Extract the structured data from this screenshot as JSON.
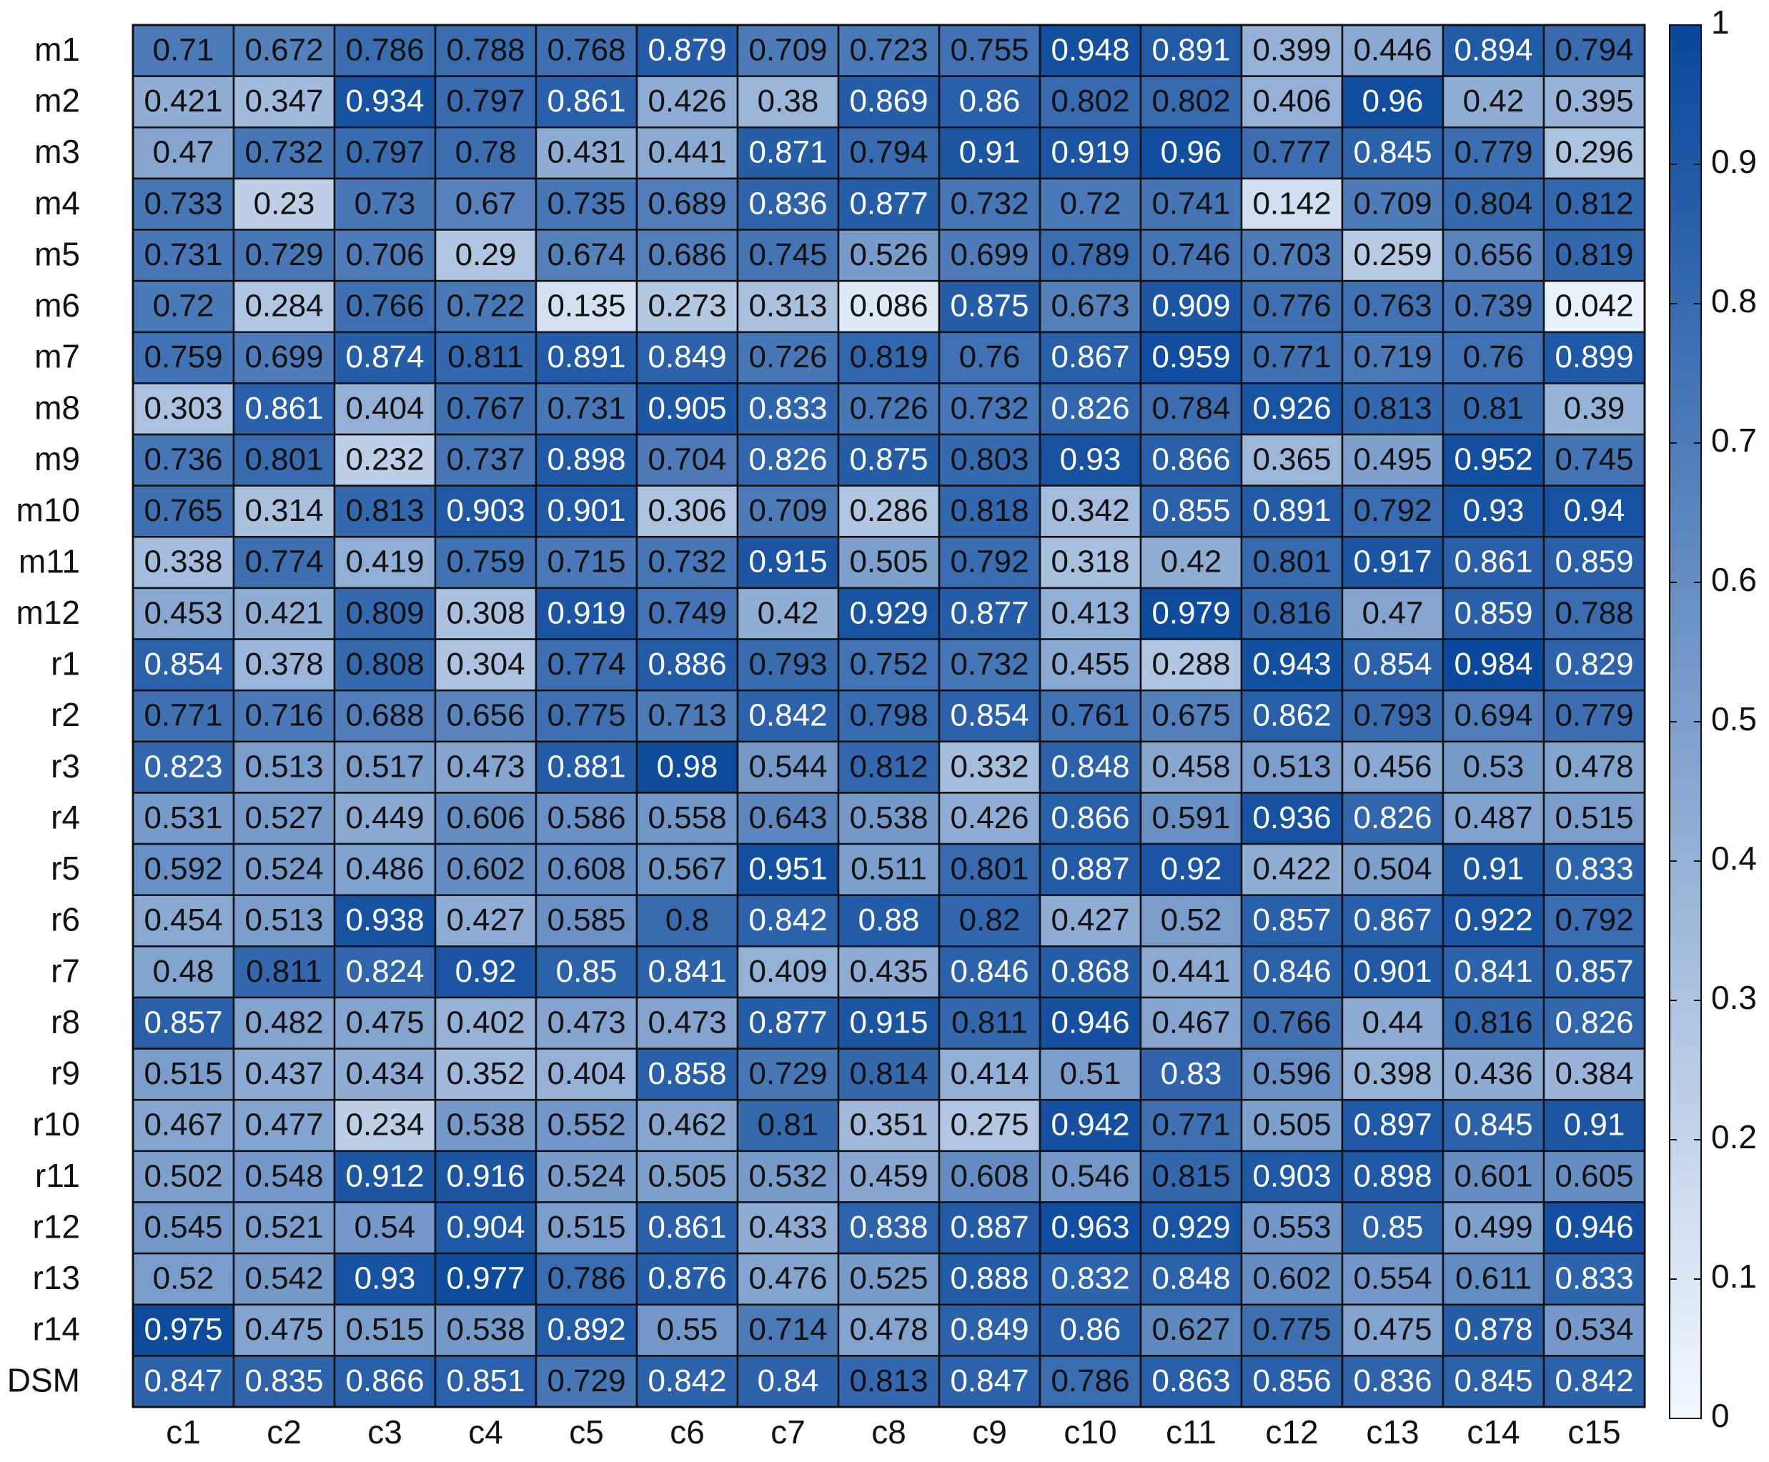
{
  "chart_data": {
    "type": "heatmap",
    "x_categories": [
      "c1",
      "c2",
      "c3",
      "c4",
      "c5",
      "c6",
      "c7",
      "c8",
      "c9",
      "c10",
      "c11",
      "c12",
      "c13",
      "c14",
      "c15"
    ],
    "y_categories": [
      "m1",
      "m2",
      "m3",
      "m4",
      "m5",
      "m6",
      "m7",
      "m8",
      "m9",
      "m10",
      "m11",
      "m12",
      "r1",
      "r2",
      "r3",
      "r4",
      "r5",
      "r6",
      "r7",
      "r8",
      "r9",
      "r10",
      "r11",
      "r12",
      "r13",
      "r14",
      "DSM"
    ],
    "values": [
      [
        0.71,
        0.672,
        0.786,
        0.788,
        0.768,
        0.879,
        0.709,
        0.723,
        0.755,
        0.948,
        0.891,
        0.399,
        0.446,
        0.894,
        0.794
      ],
      [
        0.421,
        0.347,
        0.934,
        0.797,
        0.861,
        0.426,
        0.38,
        0.869,
        0.86,
        0.802,
        0.802,
        0.406,
        0.96,
        0.42,
        0.395
      ],
      [
        0.47,
        0.732,
        0.797,
        0.78,
        0.431,
        0.441,
        0.871,
        0.794,
        0.91,
        0.919,
        0.96,
        0.777,
        0.845,
        0.779,
        0.296
      ],
      [
        0.733,
        0.23,
        0.73,
        0.67,
        0.735,
        0.689,
        0.836,
        0.877,
        0.732,
        0.72,
        0.741,
        0.142,
        0.709,
        0.804,
        0.812
      ],
      [
        0.731,
        0.729,
        0.706,
        0.29,
        0.674,
        0.686,
        0.745,
        0.526,
        0.699,
        0.789,
        0.746,
        0.703,
        0.259,
        0.656,
        0.819
      ],
      [
        0.72,
        0.284,
        0.766,
        0.722,
        0.135,
        0.273,
        0.313,
        0.086,
        0.875,
        0.673,
        0.909,
        0.776,
        0.763,
        0.739,
        0.042
      ],
      [
        0.759,
        0.699,
        0.874,
        0.811,
        0.891,
        0.849,
        0.726,
        0.819,
        0.76,
        0.867,
        0.959,
        0.771,
        0.719,
        0.76,
        0.899
      ],
      [
        0.303,
        0.861,
        0.404,
        0.767,
        0.731,
        0.905,
        0.833,
        0.726,
        0.732,
        0.826,
        0.784,
        0.926,
        0.813,
        0.81,
        0.39
      ],
      [
        0.736,
        0.801,
        0.232,
        0.737,
        0.898,
        0.704,
        0.826,
        0.875,
        0.803,
        0.93,
        0.866,
        0.365,
        0.495,
        0.952,
        0.745
      ],
      [
        0.765,
        0.314,
        0.813,
        0.903,
        0.901,
        0.306,
        0.709,
        0.286,
        0.818,
        0.342,
        0.855,
        0.891,
        0.792,
        0.93,
        0.94
      ],
      [
        0.338,
        0.774,
        0.419,
        0.759,
        0.715,
        0.732,
        0.915,
        0.505,
        0.792,
        0.318,
        0.42,
        0.801,
        0.917,
        0.861,
        0.859
      ],
      [
        0.453,
        0.421,
        0.809,
        0.308,
        0.919,
        0.749,
        0.42,
        0.929,
        0.877,
        0.413,
        0.979,
        0.816,
        0.47,
        0.859,
        0.788
      ],
      [
        0.854,
        0.378,
        0.808,
        0.304,
        0.774,
        0.886,
        0.793,
        0.752,
        0.732,
        0.455,
        0.288,
        0.943,
        0.854,
        0.984,
        0.829
      ],
      [
        0.771,
        0.716,
        0.688,
        0.656,
        0.775,
        0.713,
        0.842,
        0.798,
        0.854,
        0.761,
        0.675,
        0.862,
        0.793,
        0.694,
        0.779
      ],
      [
        0.823,
        0.513,
        0.517,
        0.473,
        0.881,
        0.98,
        0.544,
        0.812,
        0.332,
        0.848,
        0.458,
        0.513,
        0.456,
        0.53,
        0.478
      ],
      [
        0.531,
        0.527,
        0.449,
        0.606,
        0.586,
        0.558,
        0.643,
        0.538,
        0.426,
        0.866,
        0.591,
        0.936,
        0.826,
        0.487,
        0.515
      ],
      [
        0.592,
        0.524,
        0.486,
        0.602,
        0.608,
        0.567,
        0.951,
        0.511,
        0.801,
        0.887,
        0.92,
        0.422,
        0.504,
        0.91,
        0.833
      ],
      [
        0.454,
        0.513,
        0.938,
        0.427,
        0.585,
        0.8,
        0.842,
        0.88,
        0.82,
        0.427,
        0.52,
        0.857,
        0.867,
        0.922,
        0.792
      ],
      [
        0.48,
        0.811,
        0.824,
        0.92,
        0.85,
        0.841,
        0.409,
        0.435,
        0.846,
        0.868,
        0.441,
        0.846,
        0.901,
        0.841,
        0.857
      ],
      [
        0.857,
        0.482,
        0.475,
        0.402,
        0.473,
        0.473,
        0.877,
        0.915,
        0.811,
        0.946,
        0.467,
        0.766,
        0.44,
        0.816,
        0.826
      ],
      [
        0.515,
        0.437,
        0.434,
        0.352,
        0.404,
        0.858,
        0.729,
        0.814,
        0.414,
        0.51,
        0.83,
        0.596,
        0.398,
        0.436,
        0.384
      ],
      [
        0.467,
        0.477,
        0.234,
        0.538,
        0.552,
        0.462,
        0.81,
        0.351,
        0.275,
        0.942,
        0.771,
        0.505,
        0.897,
        0.845,
        0.91
      ],
      [
        0.502,
        0.548,
        0.912,
        0.916,
        0.524,
        0.505,
        0.532,
        0.459,
        0.608,
        0.546,
        0.815,
        0.903,
        0.898,
        0.601,
        0.605
      ],
      [
        0.545,
        0.521,
        0.54,
        0.904,
        0.515,
        0.861,
        0.433,
        0.838,
        0.887,
        0.963,
        0.929,
        0.553,
        0.85,
        0.499,
        0.946
      ],
      [
        0.52,
        0.542,
        0.93,
        0.977,
        0.786,
        0.876,
        0.476,
        0.525,
        0.888,
        0.832,
        0.848,
        0.602,
        0.554,
        0.611,
        0.833
      ],
      [
        0.975,
        0.475,
        0.515,
        0.538,
        0.892,
        0.55,
        0.714,
        0.478,
        0.849,
        0.86,
        0.627,
        0.775,
        0.475,
        0.878,
        0.534
      ],
      [
        0.847,
        0.835,
        0.866,
        0.851,
        0.729,
        0.842,
        0.84,
        0.813,
        0.847,
        0.786,
        0.863,
        0.856,
        0.836,
        0.845,
        0.842
      ]
    ],
    "clim": [
      0,
      1
    ],
    "cticks": [
      0,
      0.1,
      0.2,
      0.3,
      0.4,
      0.5,
      0.6,
      0.7,
      0.8,
      0.9,
      1
    ],
    "colormap": [
      "#f3f8fe",
      "#08479b"
    ]
  }
}
